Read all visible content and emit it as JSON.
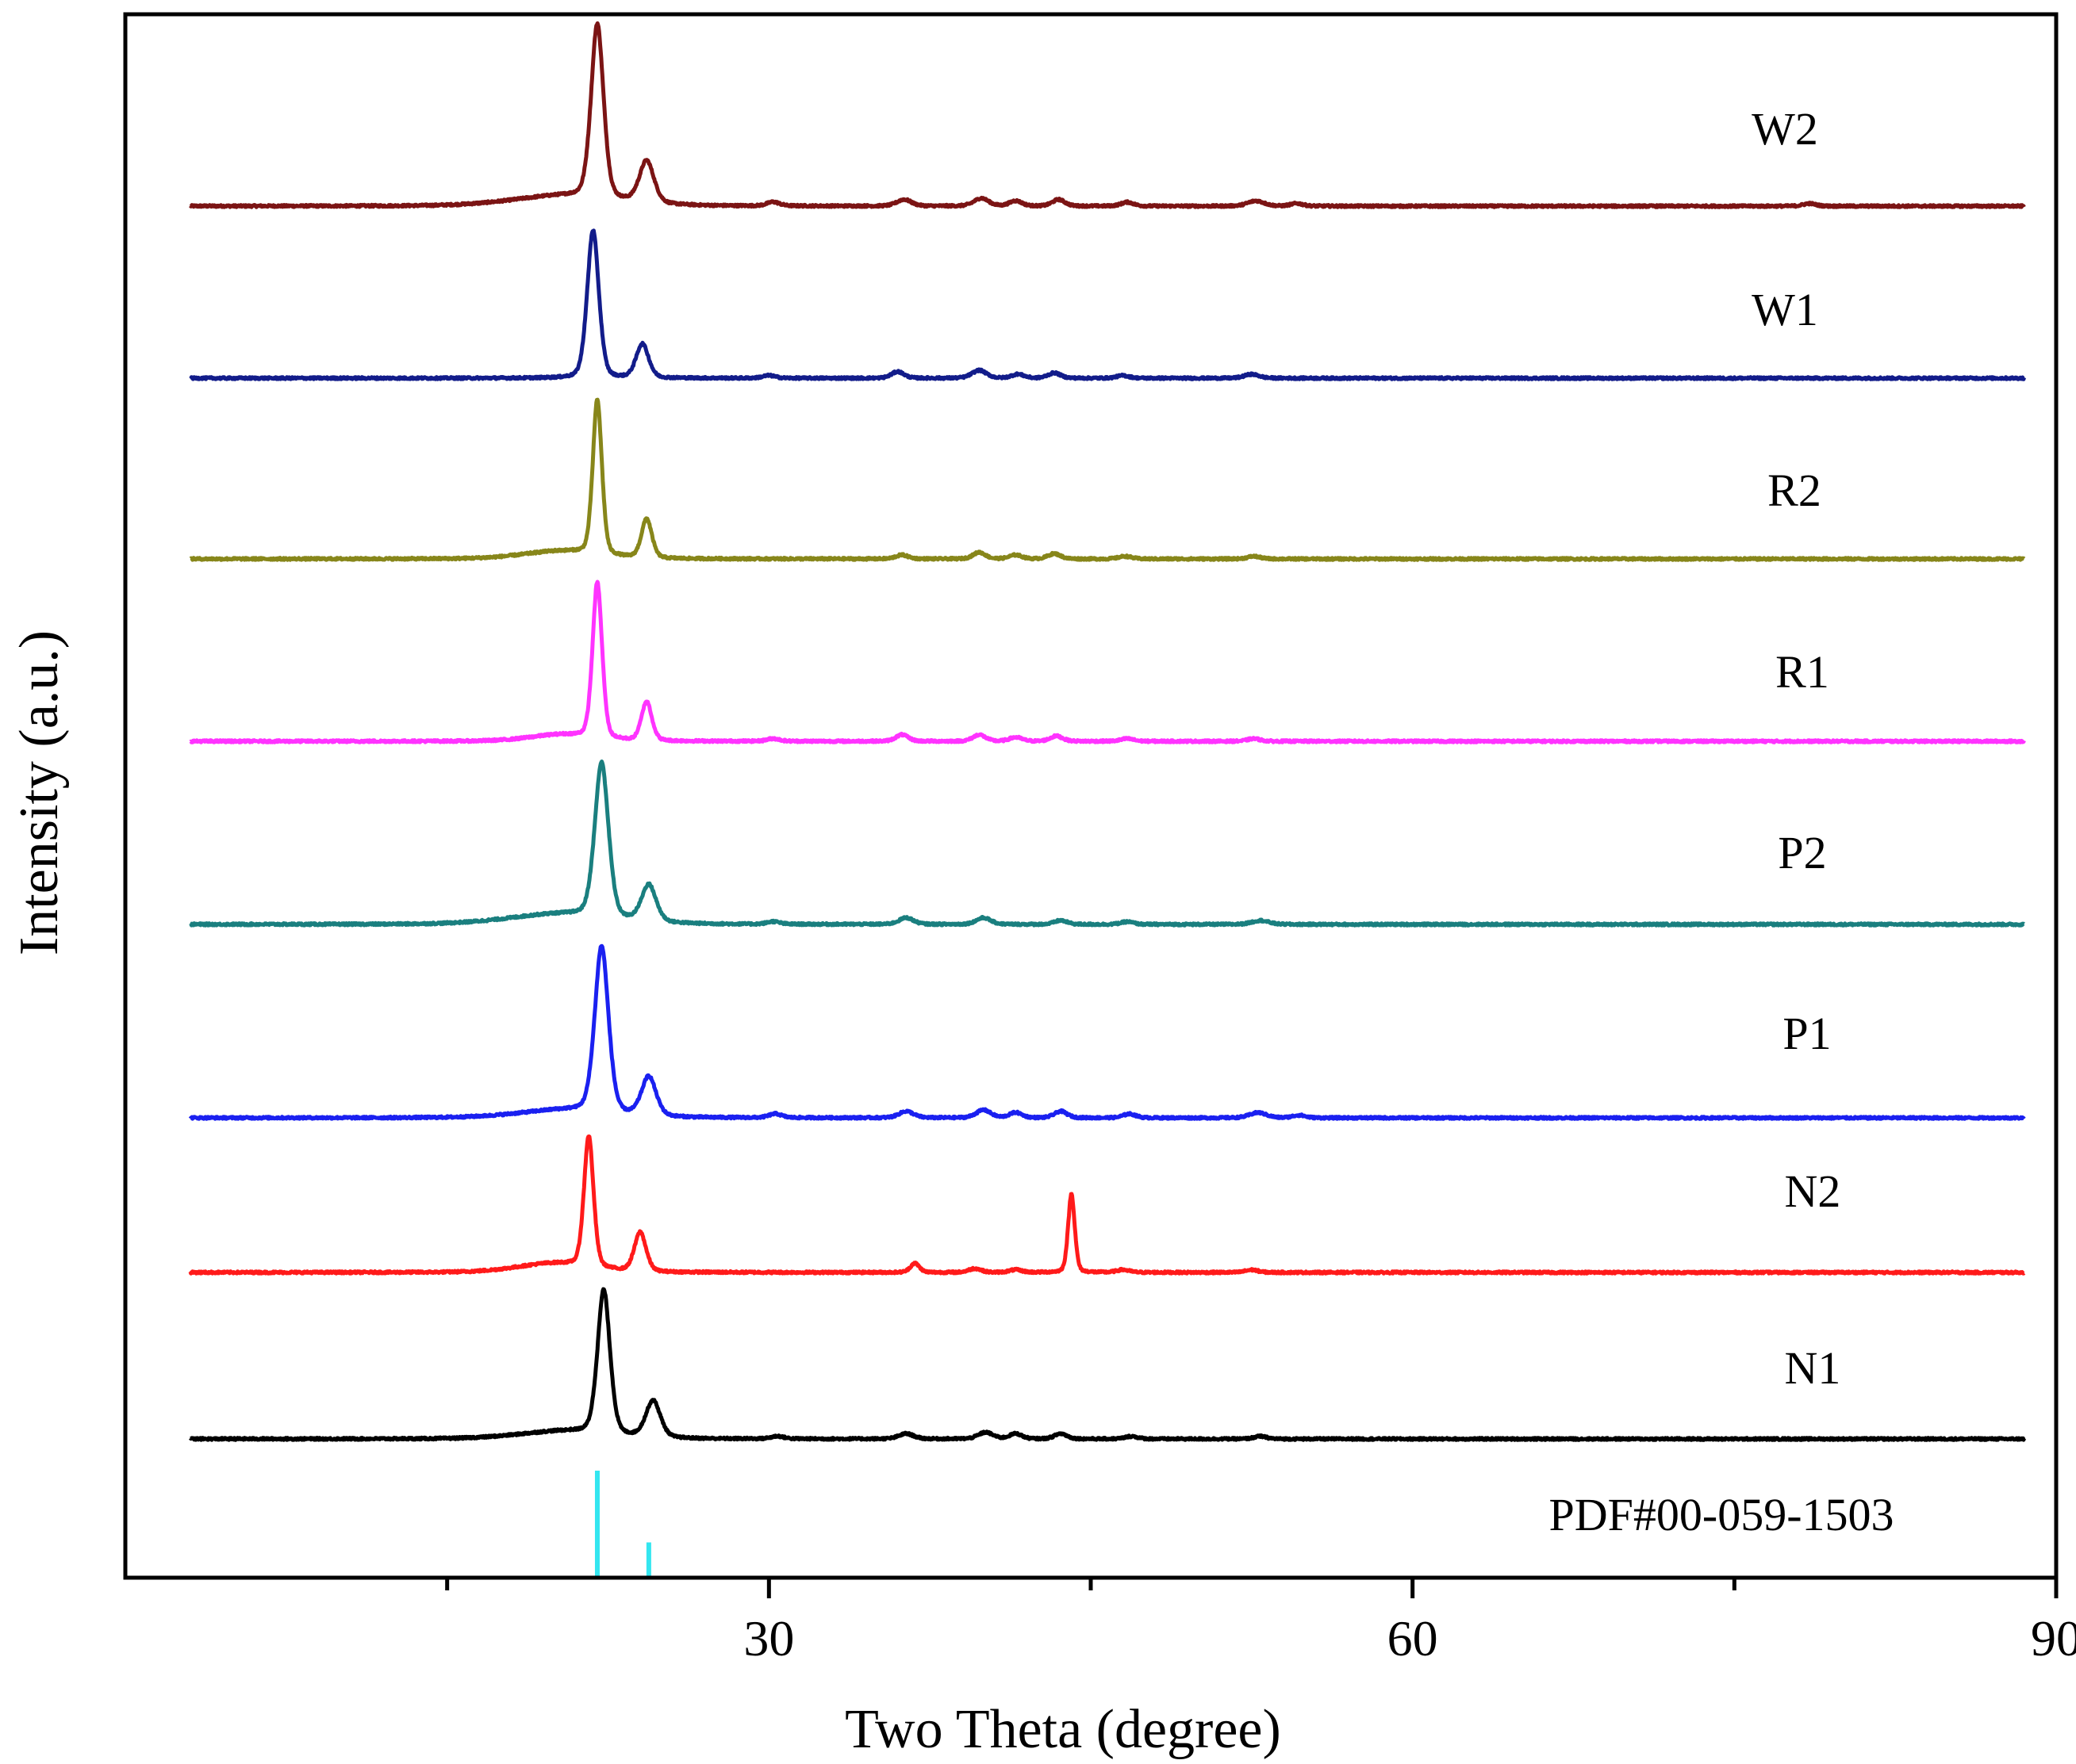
{
  "chart_data": {
    "type": "line",
    "title": "",
    "xlabel": "Two Theta (degree)",
    "ylabel": "Intensity (a.u.)",
    "xlim": [
      0,
      90
    ],
    "x_ticks": [
      30,
      60,
      90
    ],
    "x_ticks_labeled": [
      "30",
      "60",
      "90"
    ],
    "x_minor_ticks": [
      15,
      45,
      75
    ],
    "grid": false,
    "legend": "labels placed right of each curve",
    "series": [
      {
        "name": "W2",
        "color": "#7B1414",
        "peak_scale": 1.0,
        "peaks": [
          [
            22.0,
            133,
            0.3
          ],
          [
            20.5,
            8,
            2.5
          ],
          [
            24.3,
            32,
            0.35
          ],
          [
            30.2,
            3,
            0.3
          ],
          [
            36.3,
            5,
            0.35
          ],
          [
            39.9,
            6,
            0.35
          ],
          [
            41.5,
            4,
            0.3
          ],
          [
            43.5,
            5,
            0.3
          ],
          [
            46.7,
            3,
            0.3
          ],
          [
            52.7,
            4,
            0.4
          ],
          [
            54.6,
            2,
            0.3
          ],
          [
            78.5,
            2,
            0.3
          ]
        ]
      },
      {
        "name": "W1",
        "color": "#121C8A",
        "peak_scale": 1.0,
        "peaks": [
          [
            21.8,
            113,
            0.28
          ],
          [
            24.1,
            26,
            0.3
          ],
          [
            30.0,
            2,
            0.3
          ],
          [
            36.0,
            5,
            0.3
          ],
          [
            39.8,
            6,
            0.35
          ],
          [
            41.6,
            3,
            0.3
          ],
          [
            43.3,
            4,
            0.3
          ],
          [
            46.5,
            2,
            0.3
          ],
          [
            52.5,
            3,
            0.35
          ]
        ]
      },
      {
        "name": "R2",
        "color": "#87861A",
        "peak_scale": 1.0,
        "peaks": [
          [
            22.0,
            118,
            0.22
          ],
          [
            20.3,
            6,
            1.8
          ],
          [
            24.3,
            30,
            0.25
          ],
          [
            36.2,
            3,
            0.3
          ],
          [
            39.8,
            5,
            0.3
          ],
          [
            41.5,
            3,
            0.3
          ],
          [
            43.3,
            4,
            0.3
          ],
          [
            46.6,
            2,
            0.3
          ],
          [
            52.6,
            2,
            0.3
          ]
        ]
      },
      {
        "name": "R1",
        "color": "#FF33FF",
        "peak_scale": 1.0,
        "peaks": [
          [
            22.0,
            119,
            0.23
          ],
          [
            20.3,
            5,
            1.5
          ],
          [
            24.3,
            30,
            0.25
          ],
          [
            30.2,
            2,
            0.3
          ],
          [
            36.2,
            5,
            0.3
          ],
          [
            39.8,
            5,
            0.3
          ],
          [
            41.5,
            3,
            0.3
          ],
          [
            43.4,
            4,
            0.3
          ],
          [
            46.7,
            2,
            0.3
          ],
          [
            52.6,
            2,
            0.3
          ]
        ]
      },
      {
        "name": "P2",
        "color": "#1A7F7F",
        "peak_scale": 1.0,
        "peaks": [
          [
            22.2,
            118,
            0.33
          ],
          [
            20.3,
            8,
            2.5
          ],
          [
            24.4,
            28,
            0.35
          ],
          [
            30.2,
            2,
            0.3
          ],
          [
            36.4,
            5,
            0.35
          ],
          [
            40.0,
            5,
            0.35
          ],
          [
            43.6,
            3,
            0.3
          ],
          [
            46.7,
            2,
            0.3
          ],
          [
            52.9,
            3,
            0.4
          ]
        ]
      },
      {
        "name": "P1",
        "color": "#1A20F0",
        "peak_scale": 1.0,
        "peaks": [
          [
            22.2,
            127,
            0.33
          ],
          [
            20.5,
            6,
            2.2
          ],
          [
            24.4,
            30,
            0.35
          ],
          [
            30.3,
            3,
            0.3
          ],
          [
            36.4,
            5,
            0.35
          ],
          [
            40.0,
            6,
            0.35
          ],
          [
            41.5,
            4,
            0.3
          ],
          [
            43.6,
            5,
            0.3
          ],
          [
            46.8,
            3,
            0.3
          ],
          [
            52.8,
            4,
            0.4
          ],
          [
            54.7,
            2,
            0.3
          ]
        ]
      },
      {
        "name": "N2",
        "color": "#FF1A1A",
        "peak_scale": 1.0,
        "peaks": [
          [
            21.6,
            100,
            0.23
          ],
          [
            20.0,
            7,
            1.8
          ],
          [
            24.0,
            30,
            0.28
          ],
          [
            36.8,
            7,
            0.22
          ],
          [
            39.6,
            3,
            0.3
          ],
          [
            41.5,
            2,
            0.3
          ],
          [
            44.1,
            60,
            0.16
          ],
          [
            46.5,
            2,
            0.3
          ],
          [
            52.5,
            2,
            0.3
          ]
        ]
      },
      {
        "name": "N1",
        "color": "#000000",
        "peak_scale": 1.0,
        "peaks": [
          [
            22.3,
            110,
            0.3
          ],
          [
            20.5,
            6,
            2.2
          ],
          [
            24.6,
            28,
            0.35
          ],
          [
            30.4,
            2,
            0.3
          ],
          [
            36.4,
            4,
            0.35
          ],
          [
            40.1,
            5,
            0.35
          ],
          [
            41.5,
            4,
            0.3
          ],
          [
            43.6,
            4,
            0.3
          ],
          [
            46.9,
            2,
            0.3
          ],
          [
            52.9,
            2,
            0.3
          ]
        ]
      }
    ],
    "reference": {
      "name": "PDF#00-059-1503",
      "color": "#33E6F0",
      "sticks": [
        [
          22.0,
          1.0
        ],
        [
          24.4,
          0.33
        ]
      ]
    }
  }
}
